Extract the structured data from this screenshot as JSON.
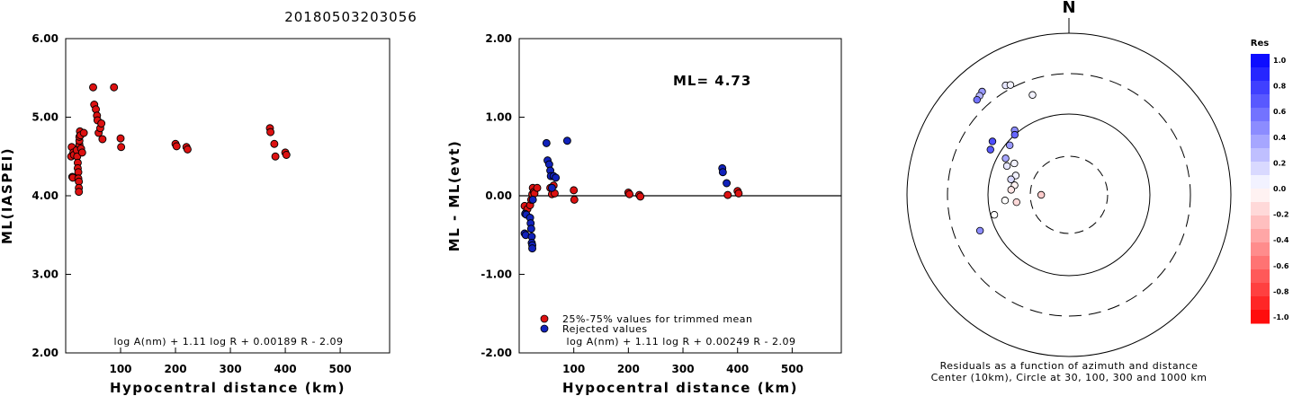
{
  "title": "20180503203056",
  "colors": {
    "red": "#dd1111",
    "blue": "#1122bb",
    "outline": "#000000"
  },
  "chart_data": [
    {
      "type": "scatter",
      "id": "left",
      "title": "",
      "xlabel": "Hypocentral distance (km)",
      "ylabel": "ML(IASPEI)",
      "xlim": [
        0,
        590
      ],
      "ylim": [
        2.0,
        6.0
      ],
      "xticks": [
        100,
        200,
        300,
        400,
        500
      ],
      "yticks": [
        "2.00",
        "3.00",
        "4.00",
        "5.00",
        "6.00"
      ],
      "formula": "log A(nm) + 1.11 log R + 0.00189 R - 2.09",
      "points": [
        [
          10,
          4.5
        ],
        [
          11,
          4.62
        ],
        [
          12,
          4.24
        ],
        [
          13,
          4.23
        ],
        [
          14,
          4.55
        ],
        [
          15,
          4.52
        ],
        [
          20,
          4.58
        ],
        [
          21,
          4.5
        ],
        [
          22,
          4.42
        ],
        [
          22,
          4.35
        ],
        [
          23,
          4.3
        ],
        [
          23,
          4.22
        ],
        [
          24,
          4.18
        ],
        [
          24,
          4.1
        ],
        [
          24,
          4.05
        ],
        [
          25,
          4.65
        ],
        [
          25,
          4.7
        ],
        [
          25,
          4.75
        ],
        [
          26,
          4.82
        ],
        [
          27,
          4.77
        ],
        [
          28,
          4.6
        ],
        [
          30,
          4.55
        ],
        [
          33,
          4.8
        ],
        [
          50,
          5.38
        ],
        [
          52,
          5.16
        ],
        [
          55,
          5.1
        ],
        [
          57,
          5.02
        ],
        [
          58,
          4.96
        ],
        [
          60,
          4.8
        ],
        [
          63,
          4.86
        ],
        [
          65,
          4.92
        ],
        [
          67,
          4.72
        ],
        [
          88,
          5.38
        ],
        [
          100,
          4.73
        ],
        [
          101,
          4.62
        ],
        [
          200,
          4.66
        ],
        [
          202,
          4.63
        ],
        [
          220,
          4.62
        ],
        [
          222,
          4.59
        ],
        [
          372,
          4.86
        ],
        [
          373,
          4.81
        ],
        [
          380,
          4.66
        ],
        [
          382,
          4.5
        ],
        [
          400,
          4.55
        ],
        [
          402,
          4.52
        ]
      ]
    },
    {
      "type": "scatter",
      "id": "middle",
      "title": "",
      "xlabel": "Hypocentral distance (km)",
      "ylabel": "ML - ML(evt)",
      "xlim": [
        0,
        590
      ],
      "ylim": [
        -2.0,
        2.0
      ],
      "xticks": [
        100,
        200,
        300,
        400,
        500
      ],
      "yticks": [
        "-2.00",
        "-1.00",
        "0.00",
        "1.00",
        "2.00"
      ],
      "ml_label": "ML= 4.73",
      "formula": "log A(nm) + 1.11 log R + 0.00249 R - 2.09",
      "legend": [
        {
          "label": "25%-75% values for trimmed mean",
          "color": "red"
        },
        {
          "label": "Rejected values",
          "color": "blue"
        }
      ],
      "red_points": [
        [
          10,
          -0.13
        ],
        [
          12,
          -0.22
        ],
        [
          15,
          -0.17
        ],
        [
          20,
          -0.12
        ],
        [
          22,
          -0.05
        ],
        [
          24,
          0.02
        ],
        [
          25,
          0.1
        ],
        [
          27,
          0.05
        ],
        [
          28,
          0.03
        ],
        [
          33,
          0.1
        ],
        [
          57,
          0.1
        ],
        [
          60,
          0.02
        ],
        [
          63,
          0.13
        ],
        [
          65,
          0.03
        ],
        [
          100,
          0.07
        ],
        [
          101,
          -0.05
        ],
        [
          200,
          0.04
        ],
        [
          202,
          0.02
        ],
        [
          220,
          0.01
        ],
        [
          222,
          -0.01
        ],
        [
          382,
          0.01
        ],
        [
          400,
          0.06
        ],
        [
          402,
          0.03
        ]
      ],
      "blue_points": [
        [
          10,
          -0.48
        ],
        [
          11,
          -0.23
        ],
        [
          12,
          -0.5
        ],
        [
          13,
          -0.24
        ],
        [
          20,
          -0.28
        ],
        [
          21,
          -0.35
        ],
        [
          22,
          -0.42
        ],
        [
          23,
          -0.52
        ],
        [
          23,
          -0.6
        ],
        [
          24,
          -0.63
        ],
        [
          24,
          -0.67
        ],
        [
          25,
          -0.05
        ],
        [
          50,
          0.67
        ],
        [
          52,
          0.45
        ],
        [
          55,
          0.4
        ],
        [
          57,
          0.32
        ],
        [
          58,
          0.25
        ],
        [
          60,
          0.1
        ],
        [
          63,
          0.25
        ],
        [
          67,
          0.23
        ],
        [
          88,
          0.7
        ],
        [
          372,
          0.35
        ],
        [
          373,
          0.3
        ],
        [
          380,
          0.16
        ]
      ]
    },
    {
      "type": "polar",
      "id": "right",
      "north_label": "N",
      "caption_line1": "Residuals as a function of azimuth and distance",
      "caption_line2": "Center (10km), Circle at 30, 100, 300 and 1000 km",
      "colorbar_title": "Res",
      "colorbar_ticks": [
        "1.0",
        "0.8",
        "0.6",
        "0.4",
        "0.2",
        "0.0",
        "-0.2",
        "-0.4",
        "-0.6",
        "-0.8",
        "-1.0"
      ],
      "circles_km": [
        30,
        100,
        300,
        1000
      ],
      "points": [
        {
          "az": 270,
          "dist": 22,
          "res": -0.2
        },
        {
          "az": 320,
          "dist": 450,
          "res": 0.4
        },
        {
          "az": 318,
          "dist": 430,
          "res": 0.3
        },
        {
          "az": 316,
          "dist": 415,
          "res": 0.55
        },
        {
          "az": 330,
          "dist": 350,
          "res": 0.1
        },
        {
          "az": 332,
          "dist": 330,
          "res": 0.05
        },
        {
          "az": 340,
          "dist": 200,
          "res": 0.05
        },
        {
          "az": 320,
          "dist": 110,
          "res": 0.45
        },
        {
          "az": 318,
          "dist": 100,
          "res": 0.6
        },
        {
          "az": 305,
          "dist": 140,
          "res": 0.7
        },
        {
          "az": 300,
          "dist": 130,
          "res": 0.65
        },
        {
          "az": 310,
          "dist": 90,
          "res": 0.4
        },
        {
          "az": 300,
          "dist": 80,
          "res": 0.35
        },
        {
          "az": 295,
          "dist": 70,
          "res": 0.1
        },
        {
          "az": 290,
          "dist": 50,
          "res": 0.05
        },
        {
          "az": 300,
          "dist": 60,
          "res": 0.05
        },
        {
          "az": 285,
          "dist": 55,
          "res": 0.15
        },
        {
          "az": 280,
          "dist": 48,
          "res": -0.05
        },
        {
          "az": 275,
          "dist": 52,
          "res": -0.1
        },
        {
          "az": 262,
          "dist": 45,
          "res": -0.15
        },
        {
          "az": 265,
          "dist": 62,
          "res": 0.0
        },
        {
          "az": 255,
          "dist": 90,
          "res": 0.0
        },
        {
          "az": 248,
          "dist": 150,
          "res": 0.45
        }
      ]
    }
  ]
}
